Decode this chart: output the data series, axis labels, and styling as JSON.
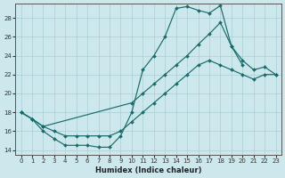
{
  "xlabel": "Humidex (Indice chaleur)",
  "bg_color": "#cce8ec",
  "line_color": "#1a6b6b",
  "grid_color": "#a8cfd4",
  "xlim": [
    -0.5,
    23.5
  ],
  "ylim": [
    13.5,
    29.5
  ],
  "xticks": [
    0,
    1,
    2,
    3,
    4,
    5,
    6,
    7,
    8,
    9,
    10,
    11,
    12,
    13,
    14,
    15,
    16,
    17,
    18,
    19,
    20,
    21,
    22,
    23
  ],
  "yticks": [
    14,
    16,
    18,
    20,
    22,
    24,
    26,
    28
  ],
  "line1_x": [
    0,
    1,
    2,
    3,
    4,
    5,
    6,
    7,
    8,
    9,
    10,
    11,
    12,
    13,
    14,
    15,
    16,
    17,
    18,
    19,
    20
  ],
  "line1_y": [
    18,
    17.3,
    16.0,
    15.2,
    14.5,
    14.5,
    14.5,
    14.3,
    14.3,
    15.5,
    18.0,
    22.5,
    24.0,
    26.0,
    29.0,
    29.2,
    28.8,
    28.5,
    29.3,
    25.0,
    23.0
  ],
  "line2_x": [
    0,
    1,
    2,
    10,
    11,
    12,
    13,
    14,
    15,
    16,
    17,
    18,
    19,
    20,
    21,
    22,
    23
  ],
  "line2_y": [
    18,
    17.3,
    16.5,
    19.0,
    20.0,
    21.0,
    22.0,
    23.0,
    24.0,
    25.2,
    26.3,
    27.5,
    25.0,
    23.5,
    22.5,
    22.8,
    22.0
  ],
  "line3_x": [
    0,
    1,
    2,
    3,
    4,
    5,
    6,
    7,
    8,
    9,
    10,
    11,
    12,
    13,
    14,
    15,
    16,
    17,
    18,
    19,
    20,
    21,
    22,
    23
  ],
  "line3_y": [
    18,
    17.3,
    16.5,
    16.0,
    15.5,
    15.5,
    15.5,
    15.5,
    15.5,
    16.0,
    17.0,
    18.0,
    19.0,
    20.0,
    21.0,
    22.0,
    23.0,
    23.5,
    23.0,
    22.5,
    22.0,
    21.5,
    22.0,
    22.0
  ]
}
